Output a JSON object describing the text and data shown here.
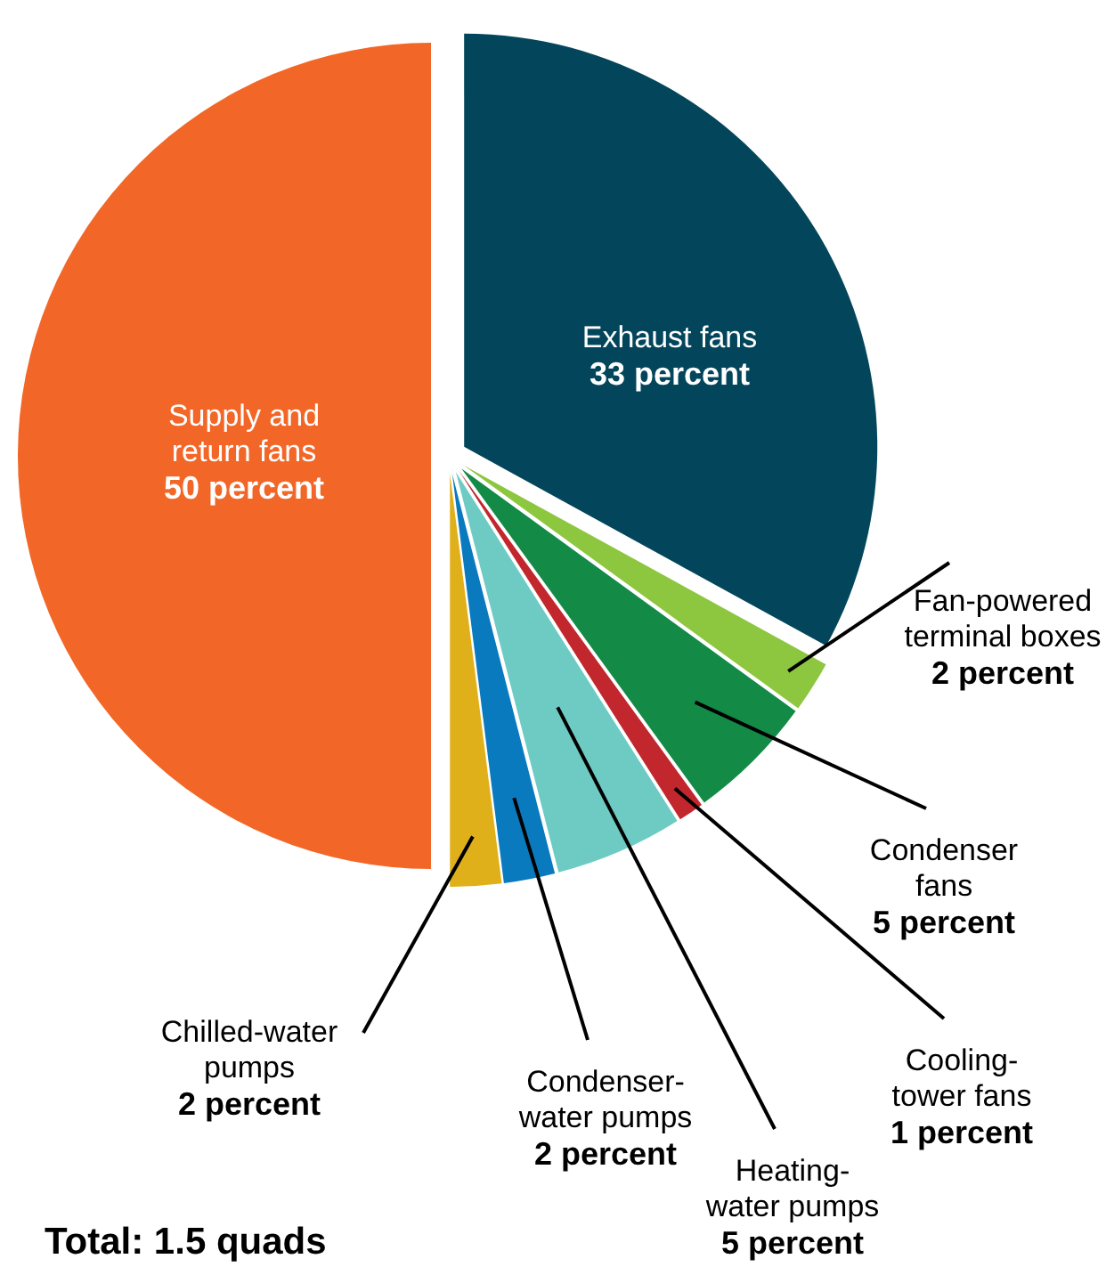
{
  "chart_data": {
    "type": "pie",
    "categories": [
      "Exhaust fans",
      "Fan-powered terminal boxes",
      "Condenser fans",
      "Cooling-tower fans",
      "Heating-water pumps",
      "Condenser-water pumps",
      "Chilled-water pumps",
      "Supply and return fans"
    ],
    "values": [
      33,
      2,
      5,
      1,
      5,
      2,
      2,
      50
    ],
    "value_labels": [
      "33 percent",
      "2 percent",
      "5 percent",
      "1 percent",
      "5 percent",
      "2 percent",
      "2 percent",
      "50 percent"
    ],
    "colors": [
      "#03465c",
      "#8dc63f",
      "#138a46",
      "#c1272d",
      "#6ecbc4",
      "#0a7abf",
      "#e0b01a",
      "#f26727"
    ],
    "annotations": [
      "Total: 1.5 quads"
    ]
  }
}
